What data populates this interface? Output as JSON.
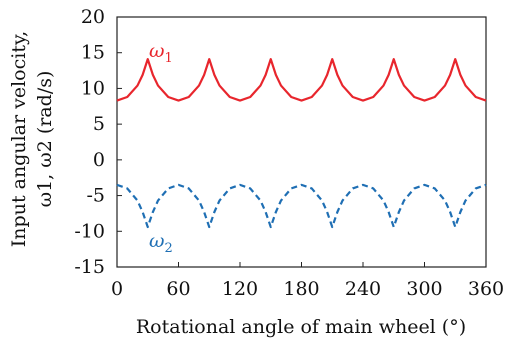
{
  "chart_data": {
    "type": "line",
    "xlabel": "Rotational angle of main wheel (°)",
    "ylabel_lines": [
      "Input angular velocity,",
      "ω1, ω2 (rad/s)"
    ],
    "xlim": [
      0,
      360
    ],
    "ylim": [
      -15,
      20
    ],
    "xticks": [
      "0",
      "60",
      "120",
      "180",
      "240",
      "300",
      "360"
    ],
    "yticks": [
      "20",
      "15",
      "10",
      "5",
      "0",
      "-5",
      "-10",
      "-15"
    ],
    "grid": false,
    "series": [
      {
        "name": "ω1",
        "label_base": "ω",
        "label_sub": "1",
        "color": "#e8262d",
        "style": "solid",
        "x": [
          0,
          10,
          20,
          25,
          30,
          35,
          40,
          50,
          60,
          70,
          80,
          85,
          90,
          95,
          100,
          110,
          120,
          130,
          140,
          145,
          150,
          155,
          160,
          170,
          180,
          190,
          200,
          205,
          210,
          215,
          220,
          230,
          240,
          250,
          260,
          265,
          270,
          275,
          280,
          290,
          300,
          310,
          320,
          325,
          330,
          335,
          340,
          350,
          360
        ],
        "y": [
          8.3,
          8.8,
          10.4,
          11.9,
          14.1,
          11.9,
          10.4,
          8.8,
          8.3,
          8.8,
          10.4,
          11.9,
          14.1,
          11.9,
          10.4,
          8.8,
          8.3,
          8.8,
          10.4,
          11.9,
          14.1,
          11.9,
          10.4,
          8.8,
          8.3,
          8.8,
          10.4,
          11.9,
          14.1,
          11.9,
          10.4,
          8.8,
          8.3,
          8.8,
          10.4,
          11.9,
          14.1,
          11.9,
          10.4,
          8.8,
          8.3,
          8.8,
          10.4,
          11.9,
          14.1,
          11.9,
          10.4,
          8.8,
          8.3
        ]
      },
      {
        "name": "ω2",
        "label_base": "ω",
        "label_sub": "2",
        "color": "#1f6fb4",
        "style": "dashed",
        "x": [
          0,
          10,
          20,
          25,
          30,
          35,
          40,
          50,
          60,
          70,
          80,
          85,
          90,
          95,
          100,
          110,
          120,
          130,
          140,
          145,
          150,
          155,
          160,
          170,
          180,
          190,
          200,
          205,
          210,
          215,
          220,
          230,
          240,
          250,
          260,
          265,
          270,
          275,
          280,
          290,
          300,
          310,
          320,
          325,
          330,
          335,
          340,
          350,
          360
        ],
        "y": [
          -3.5,
          -4.0,
          -5.7,
          -7.3,
          -9.4,
          -7.3,
          -5.7,
          -4.0,
          -3.5,
          -4.0,
          -5.7,
          -7.3,
          -9.4,
          -7.3,
          -5.7,
          -4.0,
          -3.5,
          -4.0,
          -5.7,
          -7.3,
          -9.4,
          -7.3,
          -5.7,
          -4.0,
          -3.5,
          -4.0,
          -5.7,
          -7.3,
          -9.4,
          -7.3,
          -5.7,
          -4.0,
          -3.5,
          -4.0,
          -5.7,
          -7.3,
          -9.4,
          -7.3,
          -5.7,
          -4.0,
          -3.5,
          -4.0,
          -5.7,
          -7.3,
          -9.4,
          -7.3,
          -5.7,
          -4.0,
          -3.5
        ]
      }
    ]
  }
}
